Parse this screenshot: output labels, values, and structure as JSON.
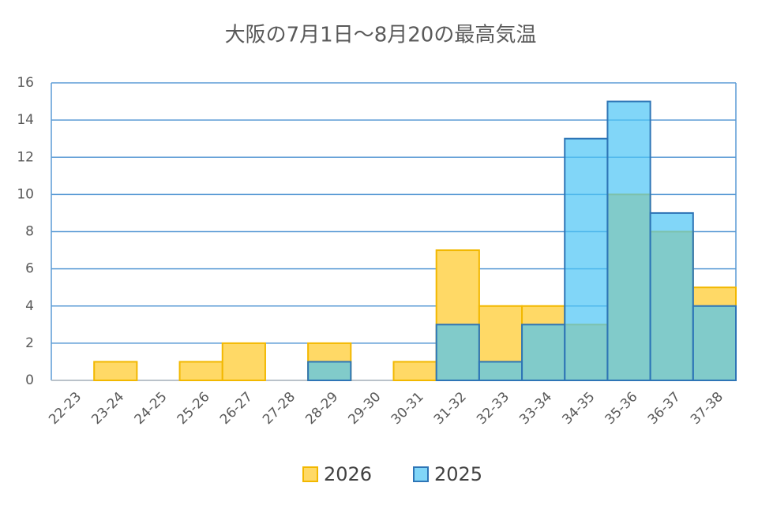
{
  "chart_data": {
    "type": "bar",
    "title": "大阪の7月1日〜8月20の最高気温",
    "categories": [
      "22-23",
      "23-24",
      "24-25",
      "25-26",
      "26-27",
      "27-28",
      "28-29",
      "29-30",
      "30-31",
      "31-32",
      "32-33",
      "33-34",
      "34-35",
      "35-36",
      "36-37",
      "37-38"
    ],
    "series": [
      {
        "name": "2026",
        "color": "#ffd966",
        "edgecolor": "#f2b800",
        "values": [
          0,
          1,
          0,
          1,
          2,
          0,
          2,
          0,
          1,
          7,
          4,
          4,
          3,
          10,
          8,
          5
        ]
      },
      {
        "name": "2025",
        "color": "#4cc4f5",
        "edgecolor": "#2e75b6",
        "values": [
          0,
          0,
          0,
          0,
          0,
          0,
          1,
          0,
          0,
          3,
          1,
          3,
          13,
          15,
          9,
          4
        ]
      }
    ],
    "ylim": [
      0,
      16
    ],
    "yticks": [
      0,
      2,
      4,
      6,
      8,
      10,
      12,
      14,
      16
    ],
    "grid": true,
    "legend": "bottom"
  }
}
